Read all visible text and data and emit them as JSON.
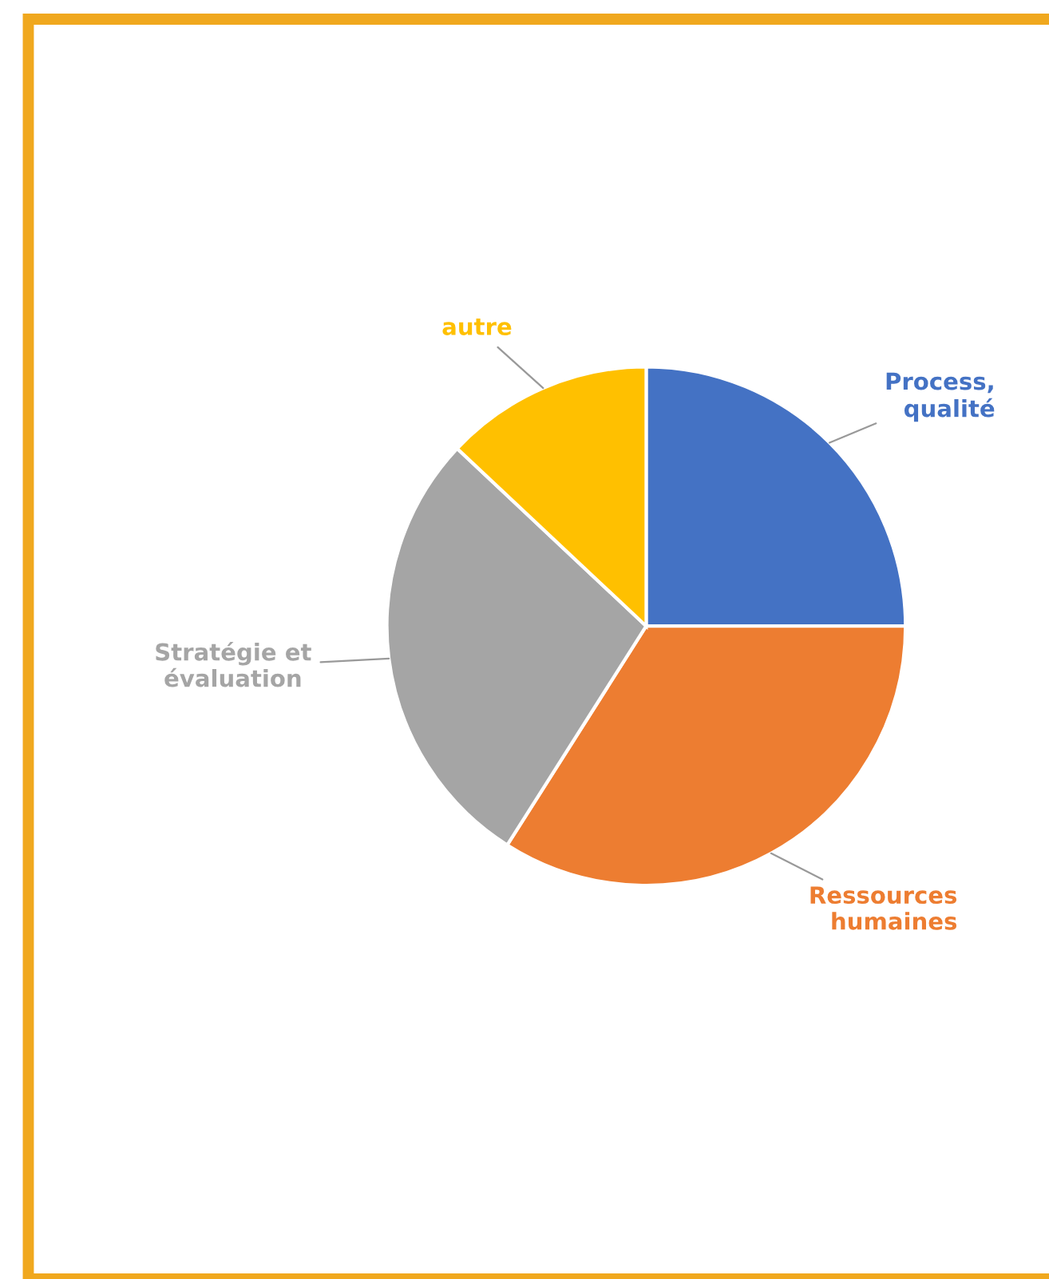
{
  "chart_data": {
    "type": "pie",
    "categories": [
      "Process,\nqualité",
      "Ressources\nhumaines",
      "Stratégie et\névaluation",
      "autre"
    ],
    "values": [
      25,
      34,
      28,
      13
    ],
    "colors": [
      "#4472c4",
      "#ed7d31",
      "#a5a5a5",
      "#ffc000"
    ],
    "legend": false
  }
}
